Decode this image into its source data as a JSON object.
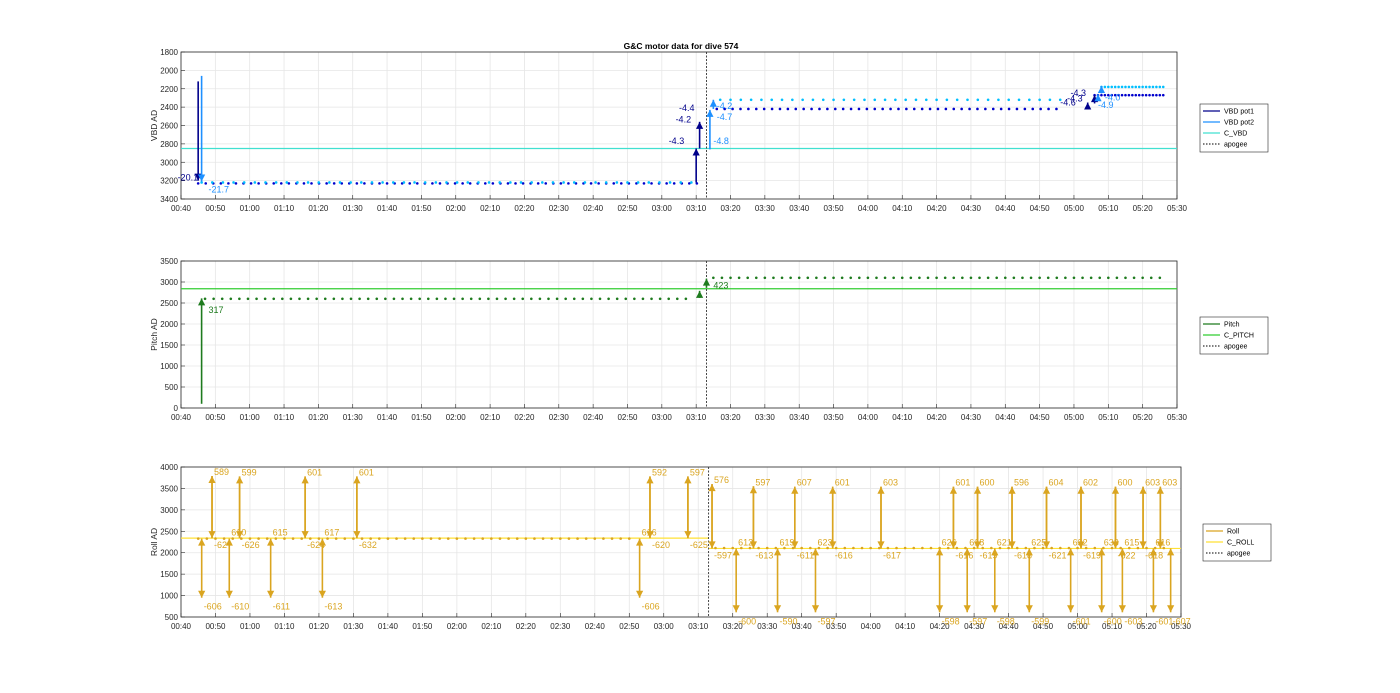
{
  "figure": {
    "title": "G&C motor data for dive 574"
  },
  "colors": {
    "vbd_pot1": "#00008B",
    "vbd_pot2": "#1E90FF",
    "vbd_dots1": "#0000CD",
    "vbd_dots2": "#00BFFF",
    "c_vbd": "#40E0D0",
    "pitch": "#1E7B1E",
    "c_pitch": "#32CD32",
    "roll": "#DAA520",
    "c_roll": "#FFE135",
    "apogee": "#333333",
    "grid": "#e6e6e6",
    "axis": "#262626"
  },
  "chart_data": [
    {
      "id": "vbd",
      "type": "scatter",
      "ylabel": "VBD AD",
      "xlabel": "",
      "y_reversed": true,
      "ylim": [
        1800,
        3400
      ],
      "yticks": [
        1800,
        2000,
        2200,
        2400,
        2600,
        2800,
        3000,
        3200,
        3400
      ],
      "xlim": [
        "00:40",
        "05:30"
      ],
      "xticks": [
        "00:40",
        "00:50",
        "01:00",
        "01:10",
        "01:20",
        "01:30",
        "01:40",
        "01:50",
        "02:00",
        "02:10",
        "02:20",
        "02:30",
        "02:40",
        "02:50",
        "03:00",
        "03:10",
        "03:20",
        "03:30",
        "03:40",
        "03:50",
        "04:00",
        "04:10",
        "04:20",
        "04:30",
        "04:40",
        "04:50",
        "05:00",
        "05:10",
        "05:20",
        "05:30"
      ],
      "grid": true,
      "legend": {
        "placement": "right",
        "entries": [
          {
            "label": "VBD pot1",
            "color_key": "vbd_pot1",
            "style": "solid"
          },
          {
            "label": "VBD pot2",
            "color_key": "vbd_pot2",
            "style": "solid"
          },
          {
            "label": "C_VBD",
            "color_key": "c_vbd",
            "style": "solid"
          },
          {
            "label": "apogee",
            "color_key": "apogee",
            "style": "dotted"
          }
        ]
      },
      "hlines": [
        {
          "y": 2850,
          "color_key": "c_vbd"
        }
      ],
      "apogee_x": "03:13",
      "series": [
        {
          "name": "VBD pot1",
          "color_key": "vbd_dots1",
          "y_const_segments": [
            {
              "x0": "00:45",
              "x1": "03:11",
              "y": 3230,
              "step_min": 2.2
            },
            {
              "x0": "03:16",
              "x1": "04:57",
              "y": 2420,
              "step_min": 2.3
            },
            {
              "x0": "05:06",
              "x1": "05:26",
              "y": 2270,
              "step_min": 1
            }
          ]
        },
        {
          "name": "VBD pot2",
          "color_key": "vbd_dots2",
          "y_const_segments": [
            {
              "x0": "00:46",
              "x1": "03:11",
              "y": 3220,
              "step_min": 3.1
            },
            {
              "x0": "03:17",
              "x1": "04:58",
              "y": 2320,
              "step_min": 3
            },
            {
              "x0": "05:08",
              "x1": "05:26",
              "y": 2180,
              "step_min": 1
            }
          ]
        }
      ],
      "arrows": [
        {
          "x": "00:45",
          "y0": 2120,
          "y1": 3200,
          "color_key": "vbd_pot1"
        },
        {
          "x": "00:46",
          "y0": 2060,
          "y1": 3210,
          "color_key": "vbd_pot2"
        },
        {
          "x": "03:10",
          "y0": 3220,
          "y1": 2850,
          "color_key": "vbd_pot1"
        },
        {
          "x": "03:11",
          "y0": 2850,
          "y1": 2560,
          "color_key": "vbd_pot1"
        },
        {
          "x": "03:14",
          "y0": 2860,
          "y1": 2430,
          "color_key": "vbd_pot2"
        },
        {
          "x": "03:15",
          "y0": 2420,
          "y1": 2320,
          "color_key": "vbd_pot2"
        },
        {
          "x": "05:04",
          "y0": 2420,
          "y1": 2350,
          "color_key": "vbd_pot1"
        },
        {
          "x": "05:06",
          "y0": 2360,
          "y1": 2270,
          "color_key": "vbd_pot1"
        },
        {
          "x": "05:07",
          "y0": 2320,
          "y1": 2260,
          "color_key": "vbd_pot2"
        },
        {
          "x": "05:08",
          "y0": 2250,
          "y1": 2170,
          "color_key": "vbd_pot2"
        }
      ],
      "labels": [
        {
          "text": "-20.1",
          "x": "00:39",
          "y": 3200,
          "color_key": "vbd_pot1"
        },
        {
          "text": "-21.7",
          "x": "00:48",
          "y": 3330,
          "color_key": "vbd_pot2"
        },
        {
          "text": "-4.3",
          "x": "03:02",
          "y": 2800,
          "color_key": "vbd_pot1"
        },
        {
          "text": "-4.2",
          "x": "03:04",
          "y": 2570,
          "color_key": "vbd_pot1"
        },
        {
          "text": "-4.4",
          "x": "03:05",
          "y": 2440,
          "color_key": "vbd_pot1"
        },
        {
          "text": "-4.8",
          "x": "03:15",
          "y": 2800,
          "color_key": "vbd_pot2"
        },
        {
          "text": "-4.7",
          "x": "03:16",
          "y": 2540,
          "color_key": "vbd_pot2"
        },
        {
          "text": "-4.2",
          "x": "03:16",
          "y": 2420,
          "color_key": "vbd_pot2"
        },
        {
          "text": "-4.6",
          "x": "04:56",
          "y": 2380,
          "color_key": "vbd_pot1"
        },
        {
          "text": "-4.3",
          "x": "04:58",
          "y": 2340,
          "color_key": "vbd_pot1"
        },
        {
          "text": "-4.3",
          "x": "04:59",
          "y": 2280,
          "color_key": "vbd_pot1"
        },
        {
          "text": "-4.9",
          "x": "05:07",
          "y": 2410,
          "color_key": "vbd_pot2"
        },
        {
          "text": "-4.0",
          "x": "05:09",
          "y": 2330,
          "color_key": "vbd_pot2"
        }
      ]
    },
    {
      "id": "pitch",
      "type": "scatter",
      "ylabel": "Pitch AD",
      "xlabel": "",
      "y_reversed": false,
      "ylim": [
        0,
        3500
      ],
      "yticks": [
        0,
        500,
        1000,
        1500,
        2000,
        2500,
        3000,
        3500
      ],
      "xlim": [
        "00:40",
        "05:30"
      ],
      "xticks": [
        "00:40",
        "00:50",
        "01:00",
        "01:10",
        "01:20",
        "01:30",
        "01:40",
        "01:50",
        "02:00",
        "02:10",
        "02:20",
        "02:30",
        "02:40",
        "02:50",
        "03:00",
        "03:10",
        "03:20",
        "03:30",
        "03:40",
        "03:50",
        "04:00",
        "04:10",
        "04:20",
        "04:30",
        "04:40",
        "04:50",
        "05:00",
        "05:10",
        "05:20",
        "05:30"
      ],
      "grid": true,
      "legend": {
        "placement": "right",
        "entries": [
          {
            "label": "Pitch",
            "color_key": "pitch",
            "style": "solid"
          },
          {
            "label": "C_PITCH",
            "color_key": "c_pitch",
            "style": "solid"
          },
          {
            "label": "apogee",
            "color_key": "apogee",
            "style": "dotted"
          }
        ]
      },
      "hlines": [
        {
          "y": 2840,
          "color_key": "c_pitch"
        }
      ],
      "apogee_x": "03:13",
      "series": [
        {
          "name": "Pitch",
          "color_key": "pitch",
          "y_const_segments": [
            {
              "x0": "00:47",
              "x1": "03:09",
              "y": 2600,
              "step_min": 2.5
            },
            {
              "x0": "03:15",
              "x1": "05:26",
              "y": 3100,
              "step_min": 2.5
            }
          ]
        }
      ],
      "arrows": [
        {
          "x": "00:46",
          "y0": 100,
          "y1": 2610,
          "color_key": "pitch"
        },
        {
          "x": "03:11",
          "y0": 2620,
          "y1": 2790,
          "color_key": "pitch"
        },
        {
          "x": "03:13",
          "y0": 2860,
          "y1": 3080,
          "color_key": "pitch"
        }
      ],
      "labels": [
        {
          "text": "317",
          "x": "00:48",
          "y": 2260,
          "color_key": "pitch"
        },
        {
          "text": "423",
          "x": "03:15",
          "y": 2840,
          "color_key": "pitch"
        }
      ]
    },
    {
      "id": "roll",
      "type": "scatter",
      "ylabel": "Roll AD",
      "xlabel": "",
      "y_reversed": false,
      "ylim": [
        500,
        4000
      ],
      "yticks": [
        500,
        1000,
        1500,
        2000,
        2500,
        3000,
        3500,
        4000
      ],
      "xlim": [
        "00:40",
        "05:30"
      ],
      "xticks": [
        "00:40",
        "00:50",
        "01:00",
        "01:10",
        "01:20",
        "01:30",
        "01:40",
        "01:50",
        "02:00",
        "02:10",
        "02:20",
        "02:30",
        "02:40",
        "02:50",
        "03:00",
        "03:10",
        "03:20",
        "03:30",
        "03:40",
        "03:50",
        "04:00",
        "04:10",
        "04:20",
        "04:30",
        "04:40",
        "04:50",
        "05:00",
        "05:10",
        "05:20",
        "05:30"
      ],
      "grid": true,
      "legend": {
        "placement": "right",
        "entries": [
          {
            "label": "Roll",
            "color_key": "roll",
            "style": "solid"
          },
          {
            "label": "C_ROLL",
            "color_key": "c_roll",
            "style": "solid"
          },
          {
            "label": "apogee",
            "color_key": "apogee",
            "style": "dotted"
          }
        ]
      },
      "hlines": [
        {
          "x0": "00:40",
          "x1": "03:13",
          "y": 2340,
          "color_key": "c_roll"
        },
        {
          "x0": "03:13",
          "x1": "05:30",
          "y": 2100,
          "color_key": "c_roll"
        }
      ],
      "apogee_x": "03:13",
      "series": [
        {
          "name": "Roll",
          "color_key": "roll",
          "y_const_segments": [
            {
              "x0": "00:45",
              "x1": "02:50",
              "y": 2330,
              "step_min": 2.5
            },
            {
              "x0": "03:15",
              "x1": "05:26",
              "y": 2110,
              "step_min": 2.5
            }
          ]
        }
      ],
      "up_spikes": [
        {
          "x": "00:49",
          "peak": 3790,
          "base": 2340,
          "label": "589",
          "mid": "-62"
        },
        {
          "x": "00:57",
          "peak": 3780,
          "base": 2340,
          "label": "599",
          "mid": "-626"
        },
        {
          "x": "01:16",
          "peak": 3780,
          "base": 2340,
          "label": "601",
          "mid": "-624"
        },
        {
          "x": "01:31",
          "peak": 3780,
          "base": 2340,
          "label": "601",
          "mid": "-632"
        },
        {
          "x": "02:56",
          "peak": 3780,
          "base": 2340,
          "label": "592",
          "mid": "-620"
        },
        {
          "x": "03:07",
          "peak": 3780,
          "base": 2340,
          "label": "597",
          "mid": "-625"
        },
        {
          "x": "03:14",
          "peak": 3600,
          "base": 2100,
          "label": "576",
          "mid": "-597"
        },
        {
          "x": "03:26",
          "peak": 3550,
          "base": 2100,
          "label": "597",
          "mid": "-613"
        },
        {
          "x": "03:38",
          "peak": 3540,
          "base": 2100,
          "label": "607",
          "mid": "-611"
        },
        {
          "x": "03:49",
          "peak": 3540,
          "base": 2100,
          "label": "601",
          "mid": "-616"
        },
        {
          "x": "04:03",
          "peak": 3540,
          "base": 2100,
          "label": "603",
          "mid": "-617"
        },
        {
          "x": "04:24",
          "peak": 3540,
          "base": 2100,
          "label": "601",
          "mid": "-616"
        },
        {
          "x": "04:31",
          "peak": 3540,
          "base": 2100,
          "label": "600",
          "mid": "-619"
        },
        {
          "x": "04:41",
          "peak": 3540,
          "base": 2100,
          "label": "596",
          "mid": "-618"
        },
        {
          "x": "04:51",
          "peak": 3540,
          "base": 2100,
          "label": "604",
          "mid": "-621"
        },
        {
          "x": "05:01",
          "peak": 3540,
          "base": 2100,
          "label": "602",
          "mid": "-619"
        },
        {
          "x": "05:11",
          "peak": 3540,
          "base": 2100,
          "label": "600",
          "mid": "-622"
        },
        {
          "x": "05:19",
          "peak": 3540,
          "base": 2100,
          "label": "603",
          "mid": "-618"
        },
        {
          "x": "05:24",
          "peak": 3540,
          "base": 2100,
          "label": "603",
          "mid": ""
        }
      ],
      "down_spikes": [
        {
          "x": "00:46",
          "trough": 950,
          "base": 2330,
          "label": "-606",
          "top": ""
        },
        {
          "x": "00:54",
          "trough": 950,
          "base": 2330,
          "label": "-610",
          "top": "610"
        },
        {
          "x": "01:06",
          "trough": 950,
          "base": 2330,
          "label": "-611",
          "top": "615"
        },
        {
          "x": "01:21",
          "trough": 950,
          "base": 2330,
          "label": "-613",
          "top": "617"
        },
        {
          "x": "02:53",
          "trough": 950,
          "base": 2330,
          "label": "-606",
          "top": "616"
        },
        {
          "x": "03:21",
          "trough": 610,
          "base": 2100,
          "label": "-600",
          "top": "612"
        },
        {
          "x": "03:33",
          "trough": 610,
          "base": 2100,
          "label": "-590",
          "top": "619"
        },
        {
          "x": "03:44",
          "trough": 610,
          "base": 2100,
          "label": "-597",
          "top": "623"
        },
        {
          "x": "04:20",
          "trough": 610,
          "base": 2100,
          "label": "-598",
          "top": "626"
        },
        {
          "x": "04:28",
          "trough": 610,
          "base": 2100,
          "label": "-597",
          "top": "618"
        },
        {
          "x": "04:36",
          "trough": 610,
          "base": 2100,
          "label": "-598",
          "top": "621"
        },
        {
          "x": "04:46",
          "trough": 610,
          "base": 2100,
          "label": "-599",
          "top": "625"
        },
        {
          "x": "04:58",
          "trough": 610,
          "base": 2100,
          "label": "-601",
          "top": "632"
        },
        {
          "x": "05:07",
          "trough": 610,
          "base": 2100,
          "label": "-600",
          "top": "633"
        },
        {
          "x": "05:13",
          "trough": 610,
          "base": 2100,
          "label": "-603",
          "top": "615"
        },
        {
          "x": "05:22",
          "trough": 610,
          "base": 2100,
          "label": "-601",
          "top": "616"
        },
        {
          "x": "05:27",
          "trough": 610,
          "base": 2100,
          "label": "-607",
          "top": ""
        }
      ]
    }
  ]
}
